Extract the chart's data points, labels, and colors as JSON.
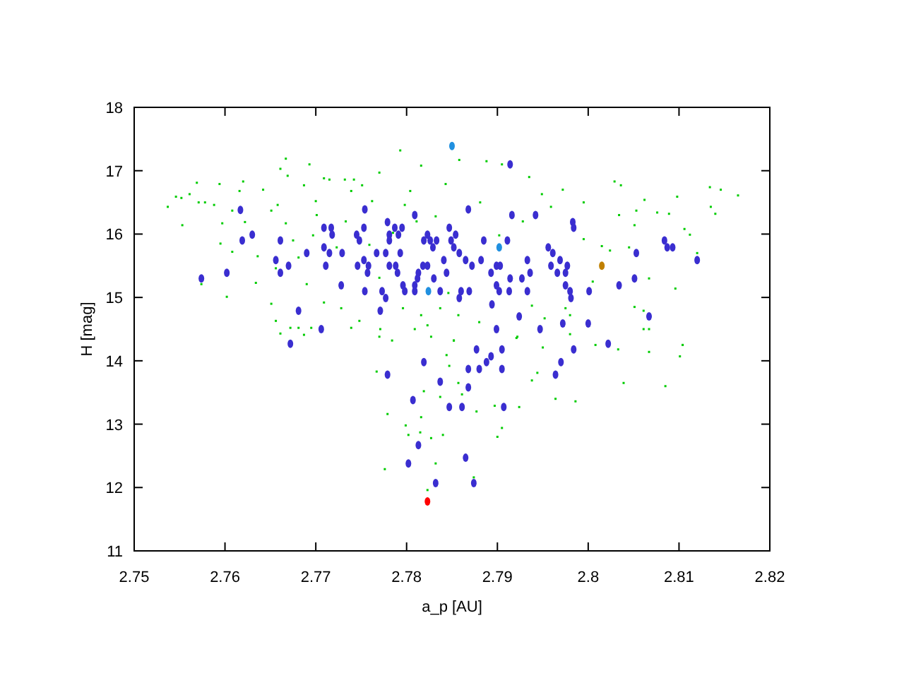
{
  "chart_data": {
    "type": "scatter",
    "xlabel": "a_p [AU]",
    "ylabel": "H [mag]",
    "xlim": [
      2.75,
      2.82
    ],
    "ylim": [
      11,
      18
    ],
    "xticks": [
      2.75,
      2.76,
      2.77,
      2.78,
      2.79,
      2.8,
      2.81,
      2.82
    ],
    "yticks": [
      11,
      12,
      13,
      14,
      15,
      16,
      17,
      18
    ],
    "grid": false,
    "series": [
      {
        "color": "#00cc00",
        "marker": "square",
        "x": [
          2.7537,
          2.7546,
          2.7552,
          2.7553,
          2.7561,
          2.7569,
          2.7571,
          2.7578,
          2.7588,
          2.7594,
          2.7597,
          2.7595,
          2.7602,
          2.7608,
          2.7608,
          2.7616,
          2.762,
          2.7622,
          2.7634,
          2.7636,
          2.7642,
          2.7651,
          2.7651,
          2.7656,
          2.7658,
          2.7661,
          2.7667,
          2.7667,
          2.7669,
          2.7675,
          2.7681,
          2.7687,
          2.769,
          2.7693,
          2.7695,
          2.77,
          2.7701,
          2.7709,
          2.7709,
          2.7715,
          2.7723,
          2.7728,
          2.7732,
          2.7739,
          2.7742,
          2.7751,
          2.7762,
          2.777,
          2.7771,
          2.7784,
          2.7793,
          2.7798,
          2.7804,
          2.7816,
          2.7816,
          2.7823,
          2.7827,
          2.7837,
          2.7843,
          2.7846,
          2.7785,
          2.7759,
          2.7697,
          2.7733,
          2.7656,
          2.777,
          2.7811,
          2.7832,
          2.7858,
          2.7888,
          2.7905,
          2.7935,
          2.7949,
          2.7972,
          2.7995,
          2.8029,
          2.8036,
          2.8062,
          2.8098,
          2.8134,
          2.8146,
          2.8165,
          2.8135,
          2.814,
          2.8089,
          2.8106,
          2.8112,
          2.8076,
          2.8053,
          2.8034,
          2.8051,
          2.8015,
          2.7995,
          2.8045,
          2.8067,
          2.8096,
          2.8104,
          2.8051,
          2.8067,
          2.8061,
          2.795,
          2.7922,
          2.788,
          2.7857,
          2.7852,
          2.7975,
          2.8005,
          2.8024,
          2.812,
          2.7928,
          2.7881,
          2.7959,
          2.7902,
          2.7938,
          2.798,
          2.7574,
          2.7661,
          2.7672,
          2.7681,
          2.7687,
          2.7739,
          2.7748,
          2.777,
          2.7767,
          2.7779,
          2.7776,
          2.7799,
          2.7802,
          2.7815,
          2.7816,
          2.7827,
          2.7832,
          2.784,
          2.7819,
          2.7844,
          2.7847,
          2.7837,
          2.7823,
          2.7809,
          2.7796,
          2.7852,
          2.7857,
          2.7861,
          2.7877,
          2.7897,
          2.79,
          2.7905,
          2.7924,
          2.7944,
          2.7938,
          2.7964,
          2.7986,
          2.8008,
          2.8033,
          2.8039,
          2.8085,
          2.8101,
          2.8104,
          2.8067,
          2.8061,
          2.7874,
          2.7921,
          2.7952,
          2.798
        ],
        "values": [
          16.43,
          16.59,
          16.57,
          16.14,
          16.63,
          16.81,
          16.5,
          16.5,
          16.46,
          16.79,
          16.17,
          15.85,
          15.01,
          16.37,
          15.72,
          16.68,
          16.83,
          16.19,
          15.23,
          15.65,
          16.7,
          16.37,
          14.9,
          14.63,
          16.46,
          17.03,
          17.19,
          16.17,
          16.92,
          15.9,
          15.63,
          16.77,
          15.21,
          17.1,
          14.52,
          16.52,
          16.3,
          16.88,
          14.92,
          16.86,
          15.79,
          14.83,
          16.86,
          16.68,
          16.86,
          16.77,
          16.52,
          16.97,
          14.5,
          14.32,
          17.32,
          16.46,
          16.68,
          17.08,
          14.72,
          14.56,
          14.38,
          14.83,
          16.79,
          15.07,
          16.02,
          15.83,
          15.98,
          16.2,
          15.46,
          15.31,
          16.2,
          16.28,
          17.17,
          17.15,
          17.1,
          16.9,
          16.63,
          16.7,
          16.5,
          16.83,
          16.77,
          16.54,
          16.59,
          16.74,
          16.7,
          16.61,
          16.43,
          16.32,
          16.32,
          16.08,
          15.99,
          16.34,
          16.37,
          16.3,
          16.14,
          15.81,
          15.92,
          15.79,
          15.3,
          15.14,
          14.25,
          14.85,
          14.5,
          14.79,
          14.21,
          14.38,
          14.61,
          14.72,
          14.32,
          14.83,
          15.25,
          15.74,
          15.7,
          16.2,
          16.5,
          16.43,
          15.98,
          14.87,
          14.42,
          15.21,
          14.43,
          14.52,
          14.52,
          14.41,
          14.52,
          14.63,
          14.38,
          13.83,
          13.16,
          12.29,
          12.98,
          12.83,
          12.87,
          13.11,
          12.78,
          12.38,
          12.83,
          13.52,
          14.09,
          13.92,
          13.43,
          11.96,
          14.5,
          14.83,
          14.32,
          13.65,
          13.47,
          13.2,
          13.29,
          12.8,
          12.94,
          13.27,
          13.81,
          13.69,
          13.4,
          13.36,
          14.25,
          14.18,
          13.65,
          13.6,
          14.07,
          14.25,
          14.14,
          14.5,
          12.16,
          14.36,
          14.67,
          14.72
        ]
      },
      {
        "color": "#3a2ed0",
        "marker": "circle",
        "x": [
          2.7574,
          2.7602,
          2.7617,
          2.7619,
          2.763,
          2.7656,
          2.7661,
          2.7661,
          2.767,
          2.7681,
          2.7672,
          2.7706,
          2.769,
          2.7709,
          2.7717,
          2.7709,
          2.7718,
          2.7715,
          2.7711,
          2.7729,
          2.7728,
          2.7754,
          2.7753,
          2.7745,
          2.7748,
          2.7753,
          2.7746,
          2.7758,
          2.7757,
          2.7754,
          2.7767,
          2.7777,
          2.7773,
          2.7777,
          2.7771,
          2.7779,
          2.7787,
          2.7795,
          2.7781,
          2.7781,
          2.7791,
          2.7793,
          2.7781,
          2.7788,
          2.779,
          2.7796,
          2.7798,
          2.7809,
          2.7809,
          2.7809,
          2.7813,
          2.7812,
          2.7818,
          2.7823,
          2.7819,
          2.7826,
          2.7823,
          2.7833,
          2.7829,
          2.783,
          2.7837,
          2.7841,
          2.7844,
          2.7847,
          2.7849,
          2.7914,
          2.7868,
          2.7916,
          2.7942,
          2.7983,
          2.7984,
          2.7854,
          2.7885,
          2.7911,
          2.7852,
          2.7858,
          2.7956,
          2.7961,
          2.7865,
          2.7882,
          2.7872,
          2.7899,
          2.7903,
          2.7933,
          2.7969,
          2.7959,
          2.7977,
          2.7893,
          2.7936,
          2.7966,
          2.7975,
          2.7914,
          2.7927,
          2.7899,
          2.7975,
          2.786,
          2.7869,
          2.7902,
          2.7913,
          2.7933,
          2.798,
          2.8001,
          2.7858,
          2.7894,
          2.7981,
          2.7924,
          2.7972,
          2.8,
          2.7899,
          2.7947,
          2.8022,
          2.7877,
          2.7905,
          2.7984,
          2.8034,
          2.8051,
          2.8053,
          2.8067,
          2.8084,
          2.8087,
          2.8093,
          2.812,
          2.7779,
          2.7819,
          2.7837,
          2.7807,
          2.7847,
          2.7813,
          2.7802,
          2.7832,
          2.7893,
          2.7888,
          2.7868,
          2.788,
          2.7905,
          2.797,
          2.7964,
          2.7868,
          2.7861,
          2.7907,
          2.7865,
          2.7874
        ],
        "values": [
          15.3,
          15.39,
          16.38,
          15.9,
          15.99,
          15.59,
          15.9,
          15.39,
          15.5,
          14.79,
          14.27,
          14.5,
          15.7,
          16.1,
          16.1,
          15.79,
          15.99,
          15.7,
          15.5,
          15.7,
          15.19,
          16.39,
          16.1,
          15.99,
          15.9,
          15.59,
          15.5,
          15.5,
          15.39,
          15.1,
          15.7,
          15.7,
          15.1,
          14.99,
          14.79,
          16.19,
          16.1,
          16.1,
          15.99,
          15.9,
          15.99,
          15.7,
          15.5,
          15.5,
          15.39,
          15.19,
          15.1,
          16.3,
          15.19,
          15.1,
          15.39,
          15.3,
          15.5,
          15.5,
          15.9,
          15.9,
          15.99,
          15.9,
          15.79,
          15.3,
          15.1,
          15.59,
          15.39,
          16.1,
          15.9,
          17.1,
          16.39,
          16.3,
          16.3,
          16.19,
          16.1,
          15.99,
          15.9,
          15.9,
          15.79,
          15.7,
          15.79,
          15.7,
          15.59,
          15.59,
          15.5,
          15.5,
          15.5,
          15.59,
          15.59,
          15.5,
          15.5,
          15.39,
          15.39,
          15.39,
          15.39,
          15.3,
          15.3,
          15.19,
          15.19,
          15.1,
          15.1,
          15.1,
          15.1,
          15.1,
          15.1,
          15.1,
          14.99,
          14.89,
          14.99,
          14.7,
          14.59,
          14.59,
          14.5,
          14.5,
          14.27,
          14.18,
          14.18,
          14.18,
          15.19,
          15.3,
          15.7,
          14.7,
          15.9,
          15.79,
          15.79,
          15.59,
          13.78,
          13.98,
          13.67,
          13.38,
          13.27,
          12.67,
          12.38,
          12.07,
          14.07,
          13.98,
          13.87,
          13.87,
          13.87,
          13.98,
          13.78,
          13.58,
          13.27,
          13.27,
          12.47,
          12.07
        ]
      },
      {
        "color": "#2090e0",
        "marker": "circle",
        "x": [
          2.785,
          2.7824,
          2.7902
        ],
        "values": [
          17.39,
          15.1,
          15.79
        ]
      },
      {
        "color": "#c08000",
        "marker": "circle",
        "x": [
          2.8015
        ],
        "values": [
          15.5
        ]
      },
      {
        "color": "#ff0000",
        "marker": "circle",
        "x": [
          2.7823
        ],
        "values": [
          11.78
        ]
      }
    ]
  }
}
